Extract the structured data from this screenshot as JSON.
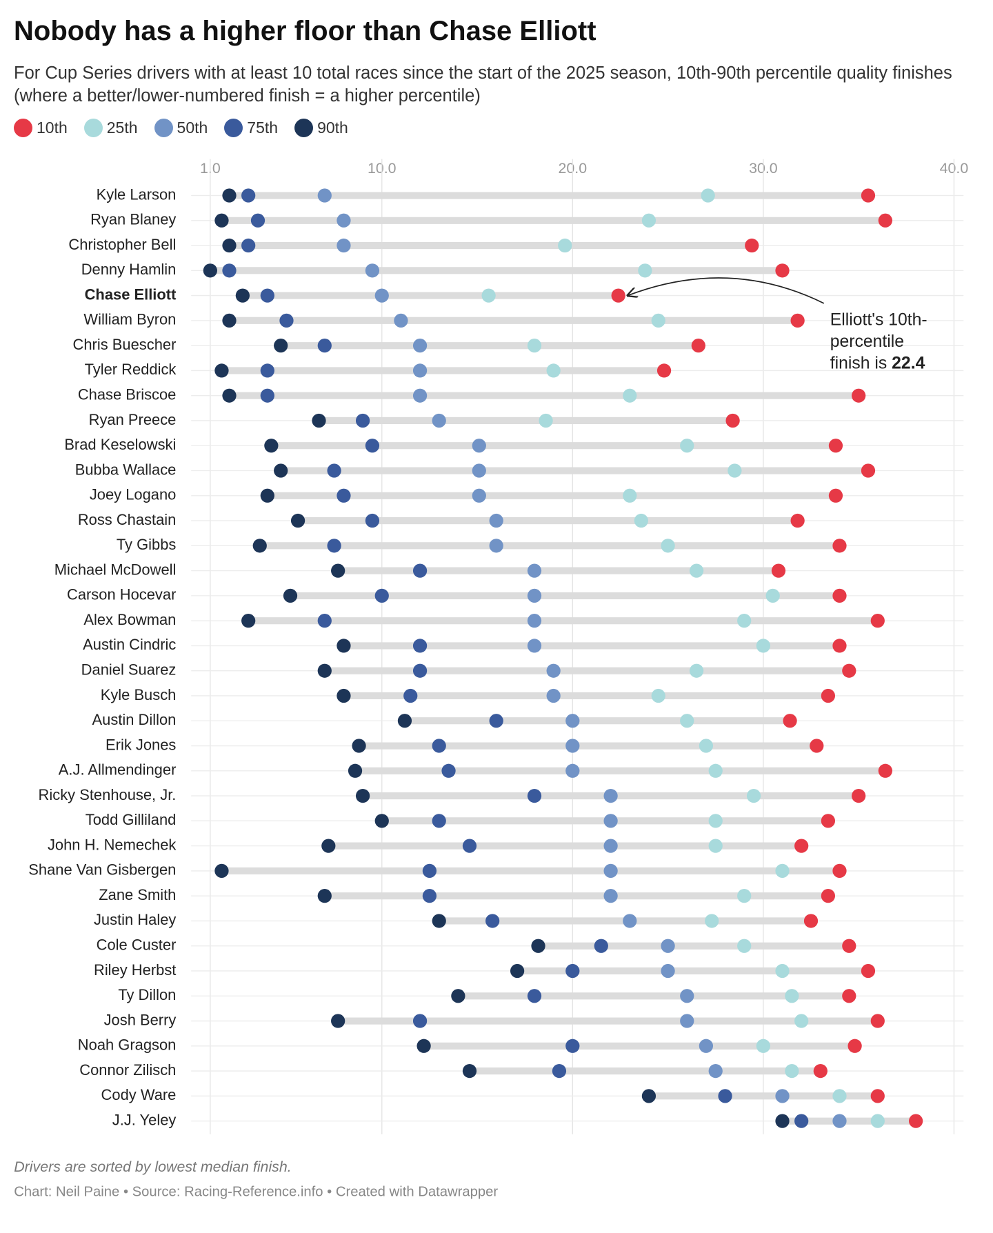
{
  "chart_data": {
    "type": "dot-range",
    "title": "Nobody has a higher floor than Chase Elliott",
    "subtitle": "For Cup Series drivers with at least 10 total races since the start of the 2025 season, 10th-90th percentile quality finishes (where a better/lower-numbered finish = a higher percentile)",
    "categories": [
      "Kyle Larson",
      "Ryan Blaney",
      "Christopher Bell",
      "Denny Hamlin",
      "Chase Elliott",
      "William Byron",
      "Chris Buescher",
      "Tyler Reddick",
      "Chase Briscoe",
      "Ryan Preece",
      "Brad Keselowski",
      "Bubba Wallace",
      "Joey Logano",
      "Ross Chastain",
      "Ty Gibbs",
      "Michael McDowell",
      "Carson Hocevar",
      "Alex Bowman",
      "Austin Cindric",
      "Daniel Suarez",
      "Kyle Busch",
      "Austin Dillon",
      "Erik Jones",
      "A.J. Allmendinger",
      "Ricky Stenhouse, Jr.",
      "Todd Gilliland",
      "John H. Nemechek",
      "Shane Van Gisbergen",
      "Zane Smith",
      "Justin Haley",
      "Cole Custer",
      "Riley Herbst",
      "Ty Dillon",
      "Josh Berry",
      "Noah Gragson",
      "Connor Zilisch",
      "Cody Ware",
      "J.J. Yeley"
    ],
    "highlight": "Chase Elliott",
    "series": [
      {
        "name": "10th",
        "color": "#e63946",
        "values": [
          35.5,
          36.4,
          29.4,
          31.0,
          22.4,
          31.8,
          26.6,
          24.8,
          35.0,
          28.4,
          33.8,
          35.5,
          33.8,
          31.8,
          34.0,
          30.8,
          34.0,
          36.0,
          34.0,
          34.5,
          33.4,
          31.4,
          32.8,
          36.4,
          35.0,
          33.4,
          32.0,
          34.0,
          33.4,
          32.5,
          34.5,
          35.5,
          34.5,
          36.0,
          34.8,
          33.0,
          36.0,
          38.0
        ]
      },
      {
        "name": "25th",
        "color": "#a8dadc",
        "values": [
          27.1,
          24.0,
          19.6,
          23.8,
          15.6,
          24.5,
          18.0,
          19.0,
          23.0,
          18.6,
          26.0,
          28.5,
          23.0,
          23.6,
          25.0,
          26.5,
          30.5,
          29.0,
          30.0,
          26.5,
          24.5,
          26.0,
          27.0,
          27.5,
          29.5,
          27.5,
          27.5,
          31.0,
          29.0,
          27.3,
          29.0,
          31.0,
          31.5,
          32.0,
          30.0,
          31.5,
          34.0,
          36.0
        ]
      },
      {
        "name": "50th",
        "color": "#7193c6",
        "values": [
          7.0,
          8.0,
          8.0,
          9.5,
          10.0,
          11.0,
          12.0,
          12.0,
          12.0,
          13.0,
          15.1,
          15.1,
          15.1,
          16.0,
          16.0,
          18.0,
          18.0,
          18.0,
          18.0,
          19.0,
          19.0,
          20.0,
          20.0,
          20.0,
          22.0,
          22.0,
          22.0,
          22.0,
          22.0,
          23.0,
          25.0,
          25.0,
          26.0,
          26.0,
          27.0,
          27.5,
          31.0,
          34.0
        ]
      },
      {
        "name": "75th",
        "color": "#3a5a9c",
        "values": [
          3.0,
          3.5,
          3.0,
          2.0,
          4.0,
          5.0,
          7.0,
          4.0,
          4.0,
          9.0,
          9.5,
          7.5,
          8.0,
          9.5,
          7.5,
          12.0,
          10.0,
          7.0,
          12.0,
          12.0,
          11.5,
          16.0,
          13.0,
          13.5,
          18.0,
          13.0,
          14.6,
          12.5,
          12.5,
          15.8,
          21.5,
          20.0,
          18.0,
          12.0,
          20.0,
          19.3,
          28.0,
          32.0
        ]
      },
      {
        "name": "90th",
        "color": "#1d3557",
        "values": [
          2.0,
          1.6,
          2.0,
          1.0,
          2.7,
          2.0,
          4.7,
          1.6,
          2.0,
          6.7,
          4.2,
          4.7,
          4.0,
          5.6,
          3.6,
          7.7,
          5.2,
          3.0,
          8.0,
          7.0,
          8.0,
          11.2,
          8.8,
          8.6,
          9.0,
          10.0,
          7.2,
          1.6,
          7.0,
          13.0,
          18.2,
          17.1,
          14.0,
          7.7,
          12.2,
          14.6,
          24.0,
          31.0
        ]
      }
    ],
    "xlim": [
      0,
      40.5
    ],
    "xticks": [
      {
        "value": 1,
        "label": "1.0"
      },
      {
        "value": 10,
        "label": "10.0"
      },
      {
        "value": 20,
        "label": "20.0"
      },
      {
        "value": 30,
        "label": "30.0"
      },
      {
        "value": 40,
        "label": "40.0"
      }
    ],
    "grid": true,
    "annotation": {
      "lines": [
        "Elliott's 10th-",
        "percentile",
        "finish is"
      ]
    },
    "note": "Drivers are sorted by lowest median finish.",
    "credit": "Chart: Neil Paine • Source: Racing-Reference.info • Created with Datawrapper"
  }
}
